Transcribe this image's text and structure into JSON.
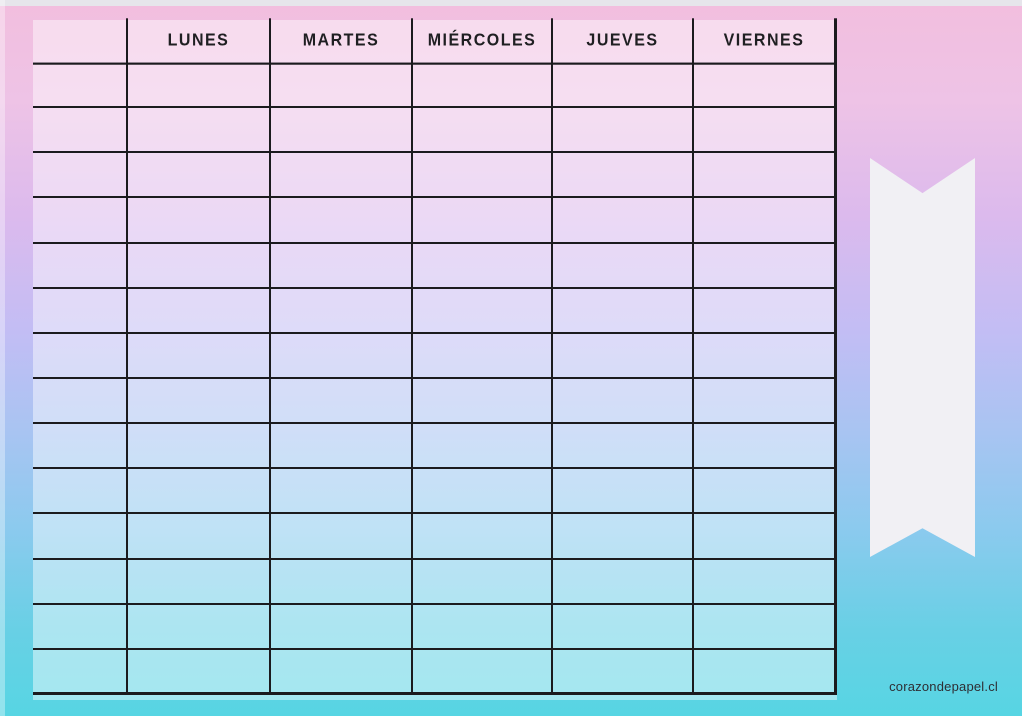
{
  "schedule": {
    "columns": [
      "",
      "LUNES",
      "MARTES",
      "MIÉRCOLES",
      "JUEVES",
      "VIERNES"
    ],
    "col_keys": [
      "corner",
      "lunes",
      "martes",
      "miercoles",
      "jueves",
      "viernes"
    ],
    "data_rows": 14,
    "cells_per_row": 6,
    "cell_values": []
  },
  "watermark": "corazondepapel.cl",
  "colors": {
    "gradient_top": "#f2bede",
    "gradient_middle": "#c3bdf4",
    "gradient_bottom": "#57d5e3",
    "grid_line": "#1b1b1e",
    "table_overlay": "rgba(255,255,255,0.45)",
    "ribbon": "#f1f0f4",
    "header_text": "#1f1f22",
    "watermark_text": "#2e2e34"
  },
  "icons": {
    "ribbon": "bookmark-ribbon-icon"
  }
}
